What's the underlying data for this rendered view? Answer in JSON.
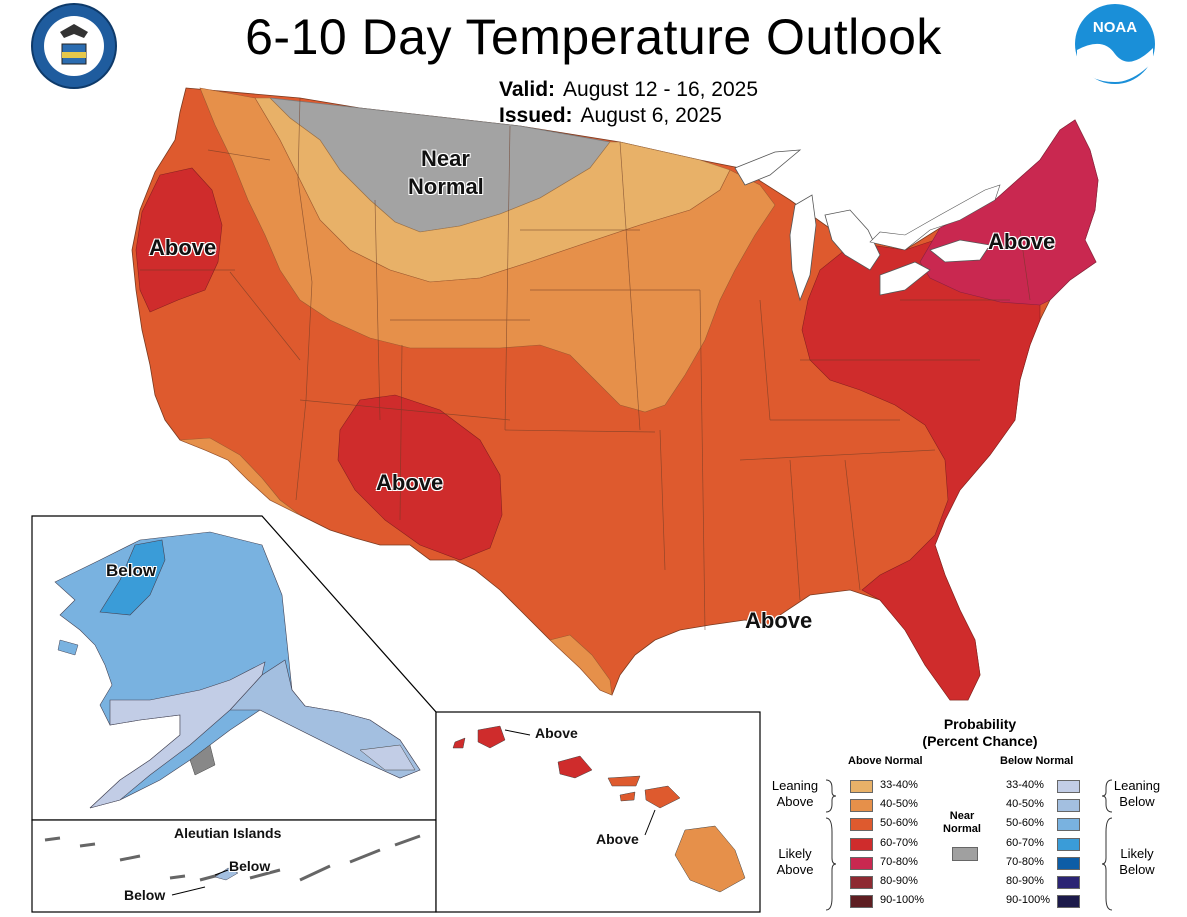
{
  "title": "6-10 Day Temperature Outlook",
  "valid_label": "Valid:",
  "valid_dates": "August 12 - 16, 2025",
  "issued_label": "Issued:",
  "issued_date": "August 6, 2025",
  "logos": {
    "left": "commerce-seal",
    "right": "noaa-logo",
    "noaa_text": "NOAA"
  },
  "map_labels": {
    "near_normal_1": "Near",
    "near_normal_2": "Normal",
    "west_coast": "Above",
    "northeast": "Above",
    "southwest": "Above",
    "gulf": "Above",
    "alaska": "Below",
    "aleutian_title": "Aleutian Islands",
    "aleutian_1": "Below",
    "aleutian_2": "Below",
    "hawaii_1": "Above",
    "hawaii_2": "Above"
  },
  "legend": {
    "title_1": "Probability",
    "title_2": "(Percent Chance)",
    "above_header": "Above Normal",
    "below_header": "Below Normal",
    "near_1": "Near",
    "near_2": "Normal",
    "near_color": "#a0a0a0",
    "leaning_above": [
      "Leaning",
      "Above"
    ],
    "likely_above": [
      "Likely",
      "Above"
    ],
    "leaning_below": [
      "Leaning",
      "Below"
    ],
    "likely_below": [
      "Likely",
      "Below"
    ],
    "above": [
      {
        "range": "33-40%",
        "color": "#e8b168"
      },
      {
        "range": "40-50%",
        "color": "#e6904a"
      },
      {
        "range": "50-60%",
        "color": "#de5a2e"
      },
      {
        "range": "60-70%",
        "color": "#cf2c2c"
      },
      {
        "range": "70-80%",
        "color": "#c92850"
      },
      {
        "range": "80-90%",
        "color": "#8e2a32"
      },
      {
        "range": "90-100%",
        "color": "#5e1e22"
      }
    ],
    "below": [
      {
        "range": "33-40%",
        "color": "#c2cde6"
      },
      {
        "range": "40-50%",
        "color": "#a3bfe0"
      },
      {
        "range": "50-60%",
        "color": "#79b2e0"
      },
      {
        "range": "60-70%",
        "color": "#3a9cd8"
      },
      {
        "range": "70-80%",
        "color": "#0d5da6"
      },
      {
        "range": "80-90%",
        "color": "#2b2474"
      },
      {
        "range": "90-100%",
        "color": "#1c1a4a"
      }
    ]
  }
}
